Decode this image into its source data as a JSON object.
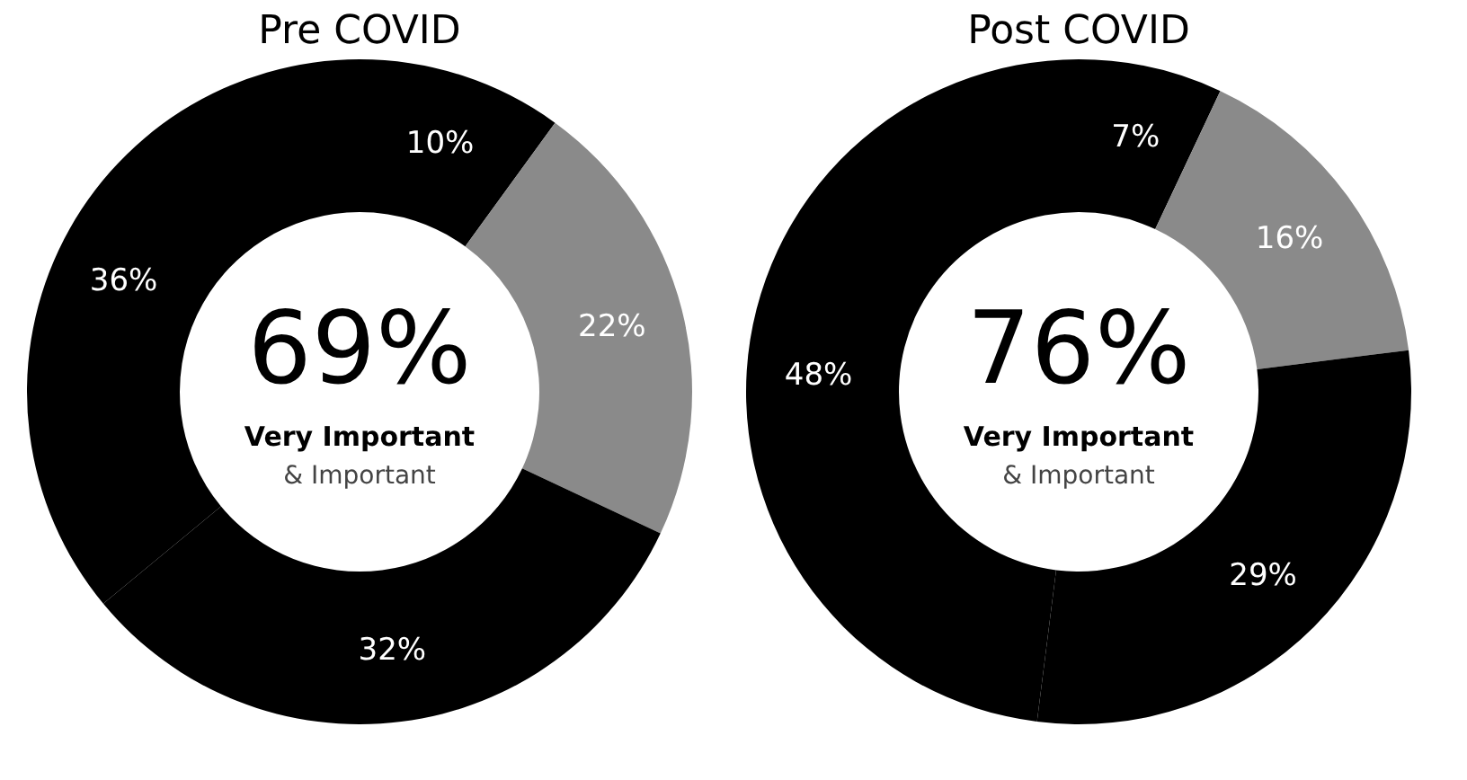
{
  "chart_data": [
    {
      "type": "donut",
      "title": "Pre COVID",
      "categories": [
        null,
        null,
        null,
        null
      ],
      "values": [
        10,
        22,
        32,
        36
      ],
      "value_labels": [
        "10%",
        "22%",
        "32%",
        "36%"
      ],
      "colors": [
        "#000000",
        "#8a8a8a",
        "#000000",
        "#000000"
      ],
      "annotations": [
        "69%",
        "Very Important",
        "& Important"
      ]
    },
    {
      "type": "donut",
      "title": "Post COVID",
      "categories": [
        null,
        null,
        null,
        null
      ],
      "values": [
        7,
        16,
        29,
        48
      ],
      "value_labels": [
        "7%",
        "16%",
        "29%",
        "48%"
      ],
      "colors": [
        "#000000",
        "#8a8a8a",
        "#000000",
        "#000000"
      ],
      "annotations": [
        "76%",
        "Very Important",
        "& Important"
      ]
    }
  ]
}
